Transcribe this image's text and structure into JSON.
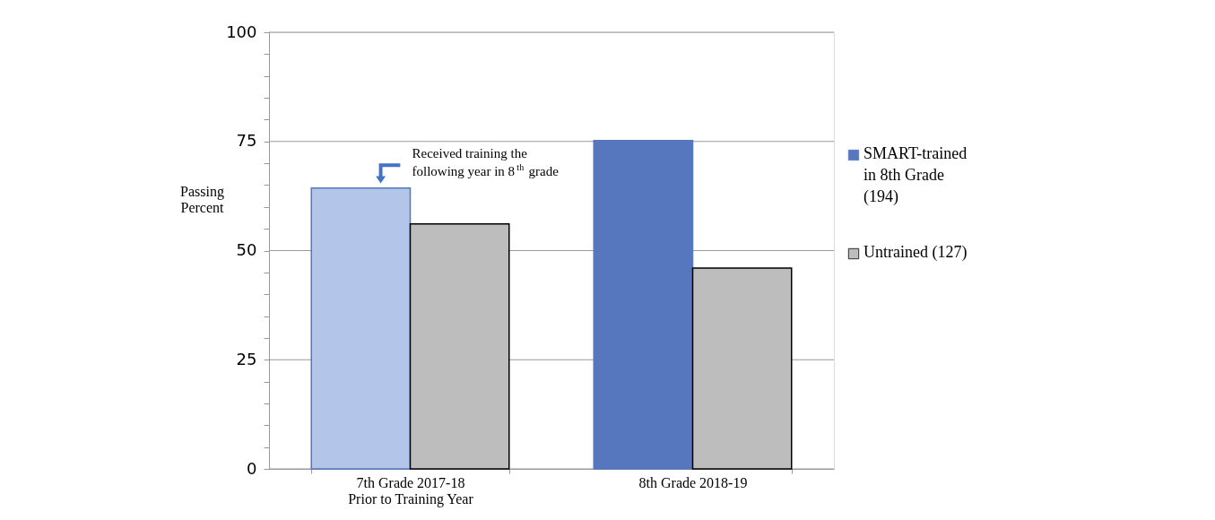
{
  "chart_data": {
    "type": "bar",
    "categories": [
      "7th Grade 2017-18\nPrior to Training Year",
      "8th Grade 2018-19"
    ],
    "ylabel": "Passing Percent",
    "series": [
      {
        "name": "SMART-trained in 8th Grade (194)",
        "color": "#5677bd",
        "colors": [
          "#b3c5e8",
          "#5677bd"
        ],
        "values": [
          64.3,
          75.2
        ]
      },
      {
        "name": "Untrained (127)",
        "color": "#bdbdbd",
        "values": [
          56.1,
          46.0
        ]
      }
    ],
    "ylim": [
      0,
      100
    ],
    "yticks": [
      0,
      {
        "value": 5,
        "label": null
      },
      {
        "value": 10,
        "label": null
      },
      {
        "value": 15,
        "label": null
      },
      {
        "value": 20,
        "label": null
      },
      25,
      {
        "value": 30,
        "label": null
      },
      {
        "value": 35,
        "label": null
      },
      {
        "value": 40,
        "label": null
      },
      {
        "value": 45,
        "label": null
      },
      50,
      {
        "value": 55,
        "label": null
      },
      {
        "value": 60,
        "label": null
      },
      {
        "value": 65,
        "label": null
      },
      {
        "value": 70,
        "label": null
      },
      75,
      {
        "value": 80,
        "label": null
      },
      {
        "value": 85,
        "label": null
      },
      {
        "value": 90,
        "label": null
      },
      {
        "value": 95,
        "label": null
      },
      100
    ],
    "grid": "y",
    "legend": "right",
    "annotations": [
      {
        "text": "Received training the following year in 8$^{th}$ grade",
        "x": "7th Grade 2017-18\nPrior to Training Year",
        "y": 64.3
      }
    ]
  }
}
